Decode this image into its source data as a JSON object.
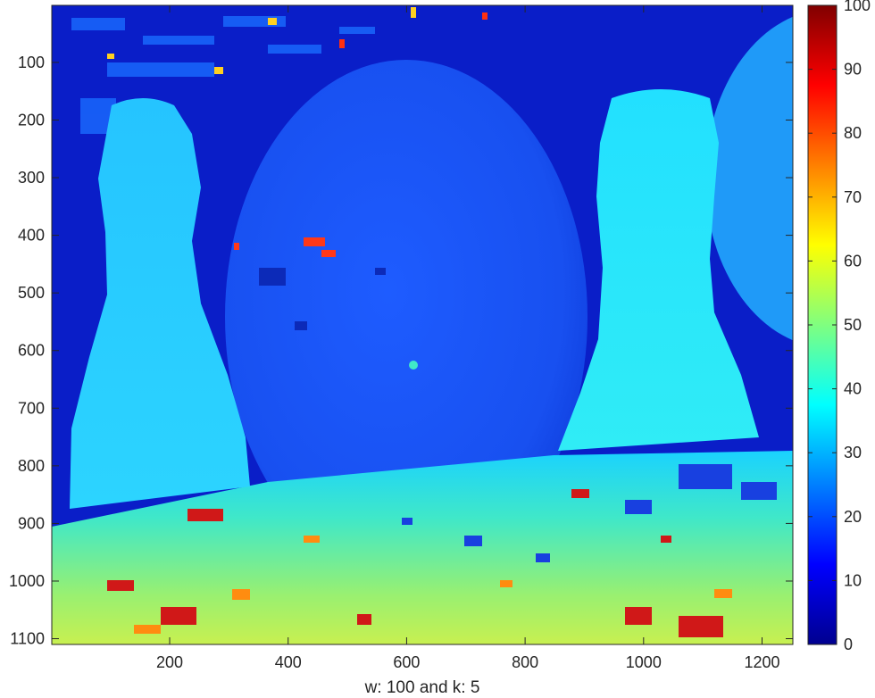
{
  "chart_data": {
    "type": "heatmap",
    "title": "",
    "xlabel": "w: 100 and k: 5",
    "ylabel": "",
    "xlim": [
      1,
      1252
    ],
    "ylim": [
      1,
      1110
    ],
    "y_direction": "reverse",
    "xticks": [
      200,
      400,
      600,
      800,
      1000,
      1200
    ],
    "yticks": [
      100,
      200,
      300,
      400,
      500,
      600,
      700,
      800,
      900,
      1000,
      1100
    ],
    "colormap": "jet",
    "colorbar": {
      "range": [
        0,
        100
      ],
      "ticks": [
        0,
        10,
        20,
        30,
        40,
        50,
        60,
        70,
        80,
        90,
        100
      ],
      "placement": "right"
    },
    "image_description": "disparity map showing two bowling pins in front of a large ball on a textured surface",
    "regions": [
      {
        "name": "background",
        "approx_value": 5
      },
      {
        "name": "ball",
        "approx_value": 22
      },
      {
        "name": "left pin",
        "approx_value": 33
      },
      {
        "name": "right pin",
        "approx_value": 38
      },
      {
        "name": "table surface",
        "approx_value": 45
      }
    ]
  }
}
